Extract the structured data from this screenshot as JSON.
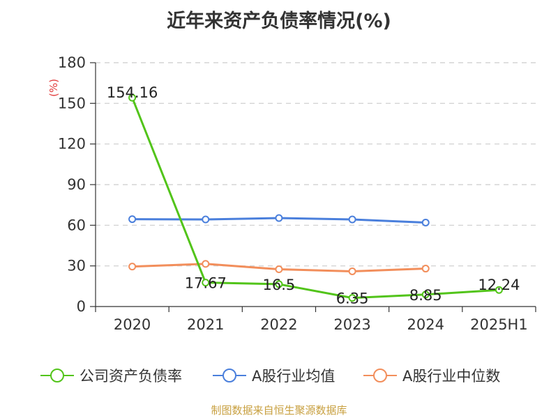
{
  "chart_data": {
    "type": "line",
    "title": "近年来资产负债率情况(%)",
    "ylabel": "(%)",
    "xlabel": "",
    "categories": [
      "2020",
      "2021",
      "2022",
      "2023",
      "2024",
      "2025H1"
    ],
    "ylim": [
      0,
      180
    ],
    "yticks": [
      0,
      30,
      60,
      90,
      120,
      150,
      180
    ],
    "grid": true,
    "legend_position": "bottom",
    "series": [
      {
        "name": "公司资产负债率",
        "color": "#52c41a",
        "values": [
          154.16,
          17.67,
          16.5,
          6.35,
          8.85,
          12.24
        ],
        "labels": [
          "154.16",
          "17.67",
          "16.5",
          "6.35",
          "8.85",
          "12.24"
        ]
      },
      {
        "name": "A股行业均值",
        "color": "#4a7fdc",
        "values": [
          64.5,
          64.3,
          65.3,
          64.3,
          62.0,
          null
        ]
      },
      {
        "name": "A股行业中位数",
        "color": "#f28e5b",
        "values": [
          29.5,
          31.5,
          27.5,
          26.0,
          28.0,
          null
        ]
      }
    ]
  },
  "footer": {
    "source": "制图数据来自恒生聚源数据库"
  }
}
